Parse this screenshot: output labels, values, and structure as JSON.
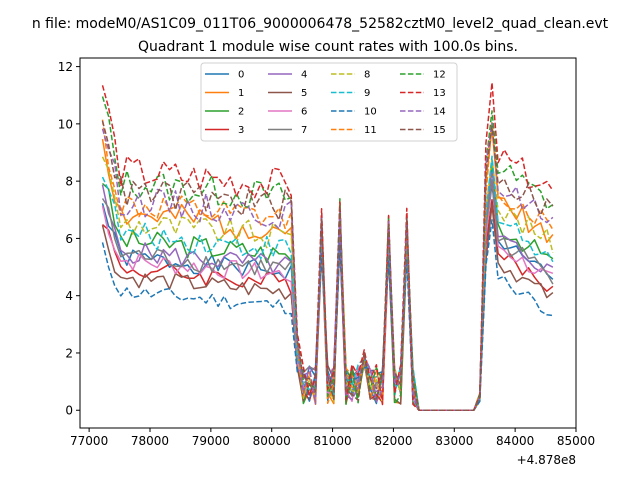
{
  "chart_data": {
    "type": "line",
    "suptitle": "n file: modeM0/AS1C09_011T06_9000006478_52582cztM0_level2_quad_clean.evt",
    "title": "Quadrant 1 module wise count rates with 100.0s bins.",
    "xlabel": "",
    "ylabel": "",
    "x_offset_label": "+4.878e8",
    "xlim": [
      76850,
      85000
    ],
    "ylim": [
      -0.62,
      12.3
    ],
    "xticks": [
      77000,
      78000,
      79000,
      80000,
      81000,
      82000,
      83000,
      84000,
      85000
    ],
    "yticks": [
      0,
      2,
      4,
      6,
      8,
      10,
      12
    ],
    "grid": false,
    "legend": {
      "placement": "top-center",
      "columns": 4
    },
    "x": [
      77220,
      77320,
      77420,
      77520,
      77620,
      77720,
      77820,
      77920,
      78020,
      78120,
      78220,
      78320,
      78420,
      78520,
      78620,
      78720,
      78820,
      78920,
      79020,
      79120,
      79220,
      79320,
      79420,
      79520,
      79620,
      79720,
      79820,
      79920,
      80020,
      80120,
      80220,
      80320,
      80420,
      80520,
      80620,
      80720,
      80820,
      80920,
      81020,
      81120,
      81220,
      81320,
      81420,
      81520,
      81620,
      81720,
      81820,
      81920,
      82020,
      82120,
      82220,
      82320,
      82420,
      82520,
      82620,
      82720,
      82820,
      82920,
      83020,
      83120,
      83220,
      83320,
      83420,
      83520,
      83620,
      83720,
      83820,
      83920,
      84020,
      84120,
      84220,
      84320,
      84420,
      84520,
      84620
    ],
    "series": [
      {
        "name": "0",
        "color": "#1f77b4",
        "dashed": false,
        "base": 5.4,
        "amp": 1.0,
        "seed": 1
      },
      {
        "name": "1",
        "color": "#ff7f0e",
        "dashed": false,
        "base": 6.9,
        "amp": 1.5,
        "seed": 2
      },
      {
        "name": "2",
        "color": "#2ca02c",
        "dashed": false,
        "base": 6.0,
        "amp": 1.2,
        "seed": 3
      },
      {
        "name": "3",
        "color": "#d62728",
        "dashed": false,
        "base": 5.0,
        "amp": 1.0,
        "seed": 4
      },
      {
        "name": "4",
        "color": "#9467bd",
        "dashed": false,
        "base": 5.6,
        "amp": 1.1,
        "seed": 5
      },
      {
        "name": "5",
        "color": "#8c564b",
        "dashed": false,
        "base": 4.7,
        "amp": 0.9,
        "seed": 6
      },
      {
        "name": "6",
        "color": "#e377c2",
        "dashed": false,
        "base": 5.3,
        "amp": 1.0,
        "seed": 7
      },
      {
        "name": "7",
        "color": "#7f7f7f",
        "dashed": false,
        "base": 5.5,
        "amp": 1.1,
        "seed": 8
      },
      {
        "name": "8",
        "color": "#bcbd22",
        "dashed": true,
        "base": 6.6,
        "amp": 1.4,
        "seed": 9
      },
      {
        "name": "9",
        "color": "#17becf",
        "dashed": true,
        "base": 6.2,
        "amp": 1.3,
        "seed": 10
      },
      {
        "name": "10",
        "color": "#1f77b4",
        "dashed": true,
        "base": 4.2,
        "amp": 0.8,
        "seed": 11
      },
      {
        "name": "11",
        "color": "#ff7f0e",
        "dashed": true,
        "base": 7.2,
        "amp": 1.5,
        "seed": 12
      },
      {
        "name": "12",
        "color": "#2ca02c",
        "dashed": true,
        "base": 8.0,
        "amp": 1.6,
        "seed": 13
      },
      {
        "name": "13",
        "color": "#d62728",
        "dashed": true,
        "base": 8.4,
        "amp": 1.7,
        "seed": 14
      },
      {
        "name": "14",
        "color": "#9467bd",
        "dashed": true,
        "base": 7.4,
        "amp": 1.5,
        "seed": 15
      },
      {
        "name": "15",
        "color": "#8c564b",
        "dashed": true,
        "base": 7.7,
        "amp": 1.6,
        "seed": 16
      }
    ]
  }
}
